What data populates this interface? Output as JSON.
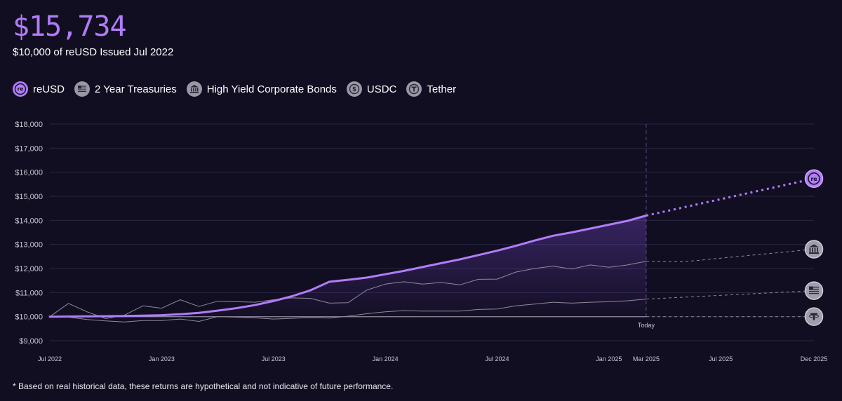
{
  "header": {
    "value": "$15,734",
    "subtitle": "$10,000 of reUSD Issued Jul 2022"
  },
  "legend": [
    {
      "label": "reUSD",
      "icon": "reusd-icon",
      "color": "#b07cf8"
    },
    {
      "label": "2 Year Treasuries",
      "icon": "us-flag-icon",
      "color": "#9a98a6"
    },
    {
      "label": "High Yield Corporate Bonds",
      "icon": "bank-icon",
      "color": "#9a98a6"
    },
    {
      "label": "USDC",
      "icon": "dollar-coin-icon",
      "color": "#9a98a6"
    },
    {
      "label": "Tether",
      "icon": "tether-icon",
      "color": "#9a98a6"
    }
  ],
  "footnote": "* Based on real historical data, these returns are hypothetical and not indicative of future performance.",
  "chart_data": {
    "type": "line",
    "ylim": [
      9000,
      18000
    ],
    "y_ticks": [
      9000,
      10000,
      11000,
      12000,
      13000,
      14000,
      15000,
      16000,
      17000,
      18000
    ],
    "y_tick_labels": [
      "$9,000",
      "$10,000",
      "$11,000",
      "$12,000",
      "$13,000",
      "$14,000",
      "$15,000",
      "$16,000",
      "$17,000",
      "$18,000"
    ],
    "xlim": [
      "2022-07",
      "2025-12"
    ],
    "x_ticks": [
      {
        "label": "Jul 2022",
        "x": "2022-07"
      },
      {
        "label": "Jan 2023",
        "x": "2023-01"
      },
      {
        "label": "Jul 2023",
        "x": "2023-07"
      },
      {
        "label": "Jan 2024",
        "x": "2024-01"
      },
      {
        "label": "Jul 2024",
        "x": "2024-07"
      },
      {
        "label": "Jan 2025",
        "x": "2025-01"
      },
      {
        "label": "Mar 2025",
        "x": "2025-03"
      },
      {
        "label": "Jul 2025",
        "x": "2025-07"
      },
      {
        "label": "Dec 2025",
        "x": "2025-12"
      }
    ],
    "today": {
      "label": "Today",
      "x": "2025-03"
    },
    "grid": true,
    "series": [
      {
        "name": "reUSD",
        "color": "#b07cf8",
        "historical": [
          [
            "2022-07",
            10000
          ],
          [
            "2022-08",
            10005
          ],
          [
            "2022-09",
            10010
          ],
          [
            "2022-10",
            10018
          ],
          [
            "2022-11",
            10025
          ],
          [
            "2022-12",
            10040
          ],
          [
            "2023-01",
            10060
          ],
          [
            "2023-02",
            10100
          ],
          [
            "2023-03",
            10160
          ],
          [
            "2023-04",
            10250
          ],
          [
            "2023-05",
            10350
          ],
          [
            "2023-06",
            10480
          ],
          [
            "2023-07",
            10650
          ],
          [
            "2023-08",
            10850
          ],
          [
            "2023-09",
            11100
          ],
          [
            "2023-10",
            11450
          ],
          [
            "2023-11",
            11530
          ],
          [
            "2023-12",
            11620
          ],
          [
            "2024-01",
            11760
          ],
          [
            "2024-02",
            11900
          ],
          [
            "2024-03",
            12060
          ],
          [
            "2024-04",
            12220
          ],
          [
            "2024-05",
            12380
          ],
          [
            "2024-06",
            12560
          ],
          [
            "2024-07",
            12740
          ],
          [
            "2024-08",
            12940
          ],
          [
            "2024-09",
            13160
          ],
          [
            "2024-10",
            13360
          ],
          [
            "2024-11",
            13500
          ],
          [
            "2024-12",
            13660
          ],
          [
            "2025-01",
            13820
          ],
          [
            "2025-02",
            13980
          ],
          [
            "2025-03",
            14200
          ]
        ],
        "projection": [
          [
            "2025-03",
            14200
          ],
          [
            "2025-12",
            15734
          ]
        ]
      },
      {
        "name": "High Yield Corporate Bonds",
        "color": "#8d8b99",
        "historical": [
          [
            "2022-07",
            10000
          ],
          [
            "2022-08",
            10550
          ],
          [
            "2022-09",
            10200
          ],
          [
            "2022-10",
            9920
          ],
          [
            "2022-11",
            10060
          ],
          [
            "2022-12",
            10450
          ],
          [
            "2023-01",
            10350
          ],
          [
            "2023-02",
            10700
          ],
          [
            "2023-03",
            10420
          ],
          [
            "2023-04",
            10640
          ],
          [
            "2023-05",
            10620
          ],
          [
            "2023-06",
            10600
          ],
          [
            "2023-07",
            10700
          ],
          [
            "2023-08",
            10780
          ],
          [
            "2023-09",
            10760
          ],
          [
            "2023-10",
            10560
          ],
          [
            "2023-11",
            10580
          ],
          [
            "2023-12",
            11100
          ],
          [
            "2024-01",
            11350
          ],
          [
            "2024-02",
            11450
          ],
          [
            "2024-03",
            11350
          ],
          [
            "2024-04",
            11420
          ],
          [
            "2024-05",
            11320
          ],
          [
            "2024-06",
            11550
          ],
          [
            "2024-07",
            11560
          ],
          [
            "2024-08",
            11850
          ],
          [
            "2024-09",
            12000
          ],
          [
            "2024-10",
            12100
          ],
          [
            "2024-11",
            11980
          ],
          [
            "2024-12",
            12150
          ],
          [
            "2025-01",
            12050
          ],
          [
            "2025-02",
            12150
          ],
          [
            "2025-03",
            12300
          ]
        ],
        "projection": [
          [
            "2025-03",
            12300
          ],
          [
            "2025-05",
            12280
          ],
          [
            "2025-12",
            12800
          ]
        ]
      },
      {
        "name": "2 Year Treasuries",
        "color": "#8d8b99",
        "historical": [
          [
            "2022-07",
            10000
          ],
          [
            "2022-08",
            9980
          ],
          [
            "2022-09",
            9880
          ],
          [
            "2022-10",
            9820
          ],
          [
            "2022-11",
            9780
          ],
          [
            "2022-12",
            9840
          ],
          [
            "2023-01",
            9840
          ],
          [
            "2023-02",
            9900
          ],
          [
            "2023-03",
            9800
          ],
          [
            "2023-04",
            10000
          ],
          [
            "2023-05",
            9980
          ],
          [
            "2023-06",
            9950
          ],
          [
            "2023-07",
            9900
          ],
          [
            "2023-08",
            9930
          ],
          [
            "2023-09",
            9970
          ],
          [
            "2023-10",
            9940
          ],
          [
            "2023-11",
            10020
          ],
          [
            "2023-12",
            10120
          ],
          [
            "2024-01",
            10200
          ],
          [
            "2024-02",
            10250
          ],
          [
            "2024-03",
            10230
          ],
          [
            "2024-04",
            10230
          ],
          [
            "2024-05",
            10230
          ],
          [
            "2024-06",
            10300
          ],
          [
            "2024-07",
            10320
          ],
          [
            "2024-08",
            10450
          ],
          [
            "2024-09",
            10520
          ],
          [
            "2024-10",
            10600
          ],
          [
            "2024-11",
            10560
          ],
          [
            "2024-12",
            10600
          ],
          [
            "2025-01",
            10620
          ],
          [
            "2025-02",
            10660
          ],
          [
            "2025-03",
            10730
          ]
        ],
        "projection": [
          [
            "2025-03",
            10730
          ],
          [
            "2025-12",
            11080
          ]
        ]
      },
      {
        "name": "Tether",
        "color": "#8d8b99",
        "historical": [
          [
            "2022-07",
            10000
          ],
          [
            "2025-03",
            10000
          ]
        ],
        "projection": [
          [
            "2025-03",
            10000
          ],
          [
            "2025-12",
            10000
          ]
        ]
      },
      {
        "name": "USDC",
        "color": "#8d8b99",
        "historical": [
          [
            "2022-07",
            10000
          ],
          [
            "2025-03",
            10000
          ]
        ],
        "projection": []
      }
    ],
    "end_markers": [
      {
        "series": "reUSD",
        "icon": "reusd-icon"
      },
      {
        "series": "High Yield Corporate Bonds",
        "icon": "bank-icon"
      },
      {
        "series": "2 Year Treasuries",
        "icon": "us-flag-icon"
      },
      {
        "series": "Tether",
        "icon": "tether-icon"
      }
    ]
  }
}
